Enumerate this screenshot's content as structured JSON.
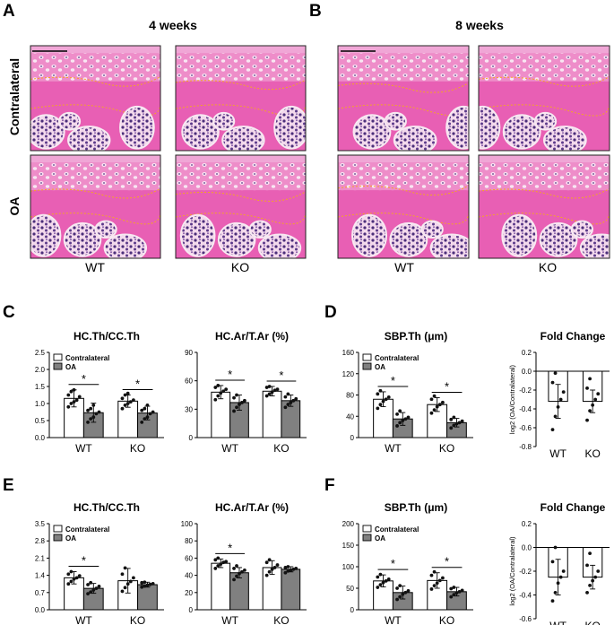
{
  "figure": {
    "panel_a": {
      "letter": "A",
      "heading": "4 weeks",
      "row_labels": [
        "Contralateral",
        "OA"
      ],
      "col_labels": [
        "WT",
        "KO"
      ]
    },
    "panel_b": {
      "letter": "B",
      "heading": "8 weeks",
      "col_labels": [
        "WT",
        "KO"
      ]
    },
    "panel_c": {
      "letter": "C"
    },
    "panel_d": {
      "letter": "D"
    },
    "panel_e": {
      "letter": "E"
    },
    "panel_f": {
      "letter": "F"
    },
    "colors": {
      "contralateral": "#ffffff",
      "oa": "#808080",
      "tissue": "#e85fb4",
      "cells": "#4b2e7a",
      "marrow": "#f5f0f3",
      "cartilage_line": "#f5a623"
    }
  },
  "chart_data": [
    {
      "id": "c1",
      "type": "bar",
      "title": "HC.Th/CC.Th",
      "groups": [
        "WT",
        "KO"
      ],
      "series": [
        {
          "name": "Contralateral",
          "values": [
            1.15,
            1.07
          ],
          "errors": [
            0.25,
            0.18
          ]
        },
        {
          "name": "OA",
          "values": [
            0.73,
            0.72
          ],
          "errors": [
            0.28,
            0.2
          ]
        }
      ],
      "yticks": [
        0,
        0.5,
        1.0,
        1.5,
        2.0,
        2.5
      ],
      "ylim": [
        0,
        2.5
      ],
      "yfmt": 1,
      "legend": "top-left",
      "sig": [
        {
          "group": 0,
          "label": "*"
        },
        {
          "group": 1,
          "label": "*"
        }
      ],
      "points": [
        [
          0.9,
          1.0,
          1.05,
          1.1,
          1.2,
          1.25,
          1.35,
          1.4
        ],
        [
          0.45,
          0.55,
          0.6,
          0.7,
          0.75,
          0.8,
          0.85,
          0.95
        ],
        [
          0.85,
          0.95,
          1.0,
          1.05,
          1.1,
          1.15,
          1.25,
          1.3
        ],
        [
          0.45,
          0.55,
          0.6,
          0.7,
          0.75,
          0.8,
          0.85,
          0.95
        ]
      ]
    },
    {
      "id": "c2",
      "type": "bar",
      "title": "HC.Ar/T.Ar (%)",
      "groups": [
        "WT",
        "KO"
      ],
      "series": [
        {
          "name": "Contralateral",
          "values": [
            48,
            49
          ],
          "errors": [
            7,
            5
          ]
        },
        {
          "name": "OA",
          "values": [
            37,
            39
          ],
          "errors": [
            8,
            6
          ]
        }
      ],
      "yticks": [
        0,
        30,
        60,
        90
      ],
      "ylim": [
        0,
        90
      ],
      "yfmt": 0,
      "legend": "none",
      "sig": [
        {
          "group": 0,
          "label": "*"
        },
        {
          "group": 1,
          "label": "*"
        }
      ],
      "points": [
        [
          40,
          44,
          47,
          49,
          51,
          53,
          55
        ],
        [
          28,
          32,
          35,
          37,
          39,
          42,
          45
        ],
        [
          44,
          46,
          48,
          50,
          51,
          53,
          54
        ],
        [
          32,
          35,
          37,
          39,
          41,
          43,
          46
        ]
      ]
    },
    {
      "id": "d1",
      "type": "bar",
      "title": "SBP.Th (μm)",
      "groups": [
        "WT",
        "KO"
      ],
      "series": [
        {
          "name": "Contralateral",
          "values": [
            72,
            62
          ],
          "errors": [
            14,
            13
          ]
        },
        {
          "name": "OA",
          "values": [
            35,
            28
          ],
          "errors": [
            12,
            8
          ]
        }
      ],
      "yticks": [
        0,
        40,
        80,
        120,
        160
      ],
      "ylim": [
        0,
        160
      ],
      "yfmt": 0,
      "legend": "top-left",
      "sig": [
        {
          "group": 0,
          "label": "*"
        },
        {
          "group": 1,
          "label": "*"
        }
      ],
      "points": [
        [
          55,
          62,
          68,
          72,
          76,
          82,
          88
        ],
        [
          22,
          28,
          32,
          35,
          38,
          44,
          50
        ],
        [
          46,
          52,
          58,
          62,
          66,
          72,
          78
        ],
        [
          18,
          23,
          26,
          28,
          31,
          34,
          38
        ]
      ]
    },
    {
      "id": "d2",
      "type": "bar",
      "title": "Fold Change",
      "groups": [
        "WT",
        "KO"
      ],
      "ylabel": "log2 (OA/Contralateral)",
      "series": [
        {
          "name": "",
          "values": [
            -0.32,
            -0.32
          ],
          "errors": [
            0.18,
            0.12
          ]
        }
      ],
      "yticks": [
        -0.8,
        -0.6,
        -0.4,
        -0.2,
        0.0,
        0.2
      ],
      "ylim": [
        -0.8,
        0.2
      ],
      "yfmt": 1,
      "legend": "none",
      "sig": [],
      "points": [
        [
          -0.62,
          -0.48,
          -0.38,
          -0.3,
          -0.22,
          -0.12,
          -0.02
        ],
        [
          -0.52,
          -0.42,
          -0.36,
          -0.3,
          -0.24,
          -0.18,
          -0.08
        ]
      ]
    },
    {
      "id": "e1",
      "type": "bar",
      "title": "HC.Th/CC.Th",
      "groups": [
        "WT",
        "KO"
      ],
      "series": [
        {
          "name": "Contralateral",
          "values": [
            1.3,
            1.18
          ],
          "errors": [
            0.25,
            0.5
          ]
        },
        {
          "name": "OA",
          "values": [
            0.87,
            1.02
          ],
          "errors": [
            0.2,
            0.1
          ]
        }
      ],
      "yticks": [
        0,
        0.7,
        1.4,
        2.1,
        2.8,
        3.5
      ],
      "ylim": [
        0,
        3.5
      ],
      "yfmt": 1,
      "legend": "top-left",
      "sig": [
        {
          "group": 0,
          "label": "*"
        }
      ],
      "points": [
        [
          1.05,
          1.15,
          1.25,
          1.3,
          1.38,
          1.45,
          1.55
        ],
        [
          0.65,
          0.72,
          0.8,
          0.87,
          0.95,
          1.02,
          1.1
        ],
        [
          0.75,
          0.9,
          1.05,
          1.15,
          1.3,
          1.45,
          1.7
        ],
        [
          0.92,
          0.96,
          1.0,
          1.03,
          1.06,
          1.1,
          1.12
        ]
      ]
    },
    {
      "id": "e2",
      "type": "bar",
      "title": "HC.Ar/T.Ar (%)",
      "groups": [
        "WT",
        "KO"
      ],
      "series": [
        {
          "name": "Contralateral",
          "values": [
            54,
            49
          ],
          "errors": [
            5,
            8
          ]
        },
        {
          "name": "OA",
          "values": [
            43,
            47
          ],
          "errors": [
            6,
            3
          ]
        }
      ],
      "yticks": [
        0,
        20,
        40,
        60,
        80,
        100
      ],
      "ylim": [
        0,
        100
      ],
      "yfmt": 0,
      "legend": "none",
      "sig": [
        {
          "group": 0,
          "label": "*"
        }
      ],
      "points": [
        [
          48,
          51,
          53,
          55,
          56,
          58,
          60
        ],
        [
          35,
          39,
          42,
          44,
          46,
          48,
          51
        ],
        [
          40,
          44,
          47,
          49,
          52,
          55,
          58
        ],
        [
          43,
          45,
          46,
          47,
          48,
          49,
          50
        ]
      ]
    },
    {
      "id": "f1",
      "type": "bar",
      "title": "SBP.Th (μm)",
      "groups": [
        "WT",
        "KO"
      ],
      "series": [
        {
          "name": "Contralateral",
          "values": [
            67,
            68
          ],
          "errors": [
            14,
            18
          ]
        },
        {
          "name": "OA",
          "values": [
            40,
            42
          ],
          "errors": [
            15,
            10
          ]
        }
      ],
      "yticks": [
        0,
        50,
        100,
        150,
        200
      ],
      "ylim": [
        0,
        200
      ],
      "yfmt": 0,
      "legend": "top-left",
      "sig": [
        {
          "group": 0,
          "label": "*"
        },
        {
          "group": 1,
          "label": "*"
        }
      ],
      "points": [
        [
          52,
          58,
          63,
          67,
          71,
          76,
          82
        ],
        [
          24,
          30,
          36,
          40,
          44,
          50,
          56
        ],
        [
          48,
          56,
          62,
          68,
          74,
          80,
          88
        ],
        [
          30,
          35,
          39,
          42,
          45,
          49,
          52
        ]
      ]
    },
    {
      "id": "f2",
      "type": "bar",
      "title": "Fold Change",
      "groups": [
        "WT",
        "KO"
      ],
      "ylabel": "log2 (OA/Contralateral)",
      "series": [
        {
          "name": "",
          "values": [
            -0.25,
            -0.25
          ],
          "errors": [
            0.15,
            0.1
          ]
        }
      ],
      "yticks": [
        -0.6,
        -0.4,
        -0.2,
        0.0,
        0.2
      ],
      "ylim": [
        -0.6,
        0.2
      ],
      "yfmt": 1,
      "legend": "none",
      "sig": [],
      "points": [
        [
          -0.45,
          -0.38,
          -0.3,
          -0.25,
          -0.2,
          -0.12,
          0.0
        ],
        [
          -0.38,
          -0.32,
          -0.28,
          -0.25,
          -0.2,
          -0.15,
          -0.05
        ]
      ]
    }
  ]
}
